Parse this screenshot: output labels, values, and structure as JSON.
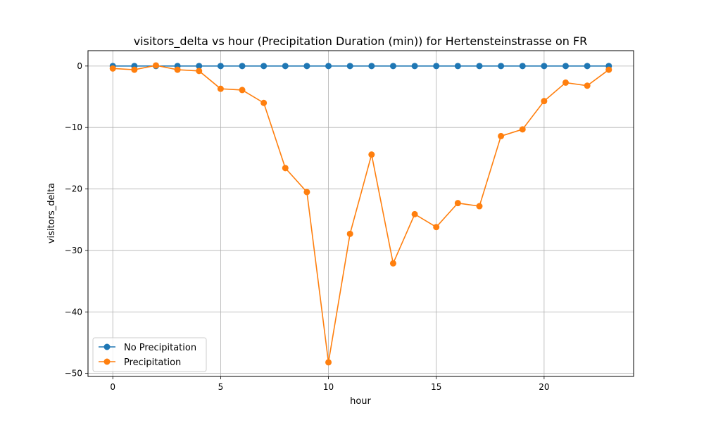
{
  "chart_data": {
    "type": "line",
    "title": "visitors_delta vs hour (Precipitation Duration (min)) for Hertensteinstrasse on FR",
    "xlabel": "hour",
    "ylabel": "visitors_delta",
    "xlim": [
      -1.15,
      24.15
    ],
    "ylim": [
      -50.5,
      2.5
    ],
    "xticks": [
      0,
      5,
      10,
      15,
      20
    ],
    "yticks": [
      0,
      -10,
      -20,
      -30,
      -40,
      -50
    ],
    "xtick_labels": [
      "0",
      "5",
      "10",
      "15",
      "20"
    ],
    "ytick_labels": [
      "0",
      "−10",
      "−20",
      "−30",
      "−40",
      "−50"
    ],
    "grid": true,
    "legend_position": "lower-left",
    "x": [
      0,
      1,
      2,
      3,
      4,
      5,
      6,
      7,
      8,
      9,
      10,
      11,
      12,
      13,
      14,
      15,
      16,
      17,
      18,
      19,
      20,
      21,
      22,
      23
    ],
    "series": [
      {
        "name": "No Precipitation",
        "color": "#1f77b4",
        "values": [
          0,
          0,
          0,
          0,
          0,
          0,
          0,
          0,
          0,
          0,
          0,
          0,
          0,
          0,
          0,
          0,
          0,
          0,
          0,
          0,
          0,
          0,
          0,
          0
        ]
      },
      {
        "name": "Precipitation",
        "color": "#ff7f0e",
        "values": [
          -0.4,
          -0.6,
          0.1,
          -0.6,
          -0.8,
          -3.7,
          -3.9,
          -6.0,
          -16.6,
          -20.5,
          -48.2,
          -27.3,
          -14.4,
          -32.1,
          -24.1,
          -26.2,
          -22.3,
          -22.8,
          -11.4,
          -10.3,
          -5.7,
          -2.7,
          -3.2,
          -0.6
        ]
      }
    ]
  }
}
